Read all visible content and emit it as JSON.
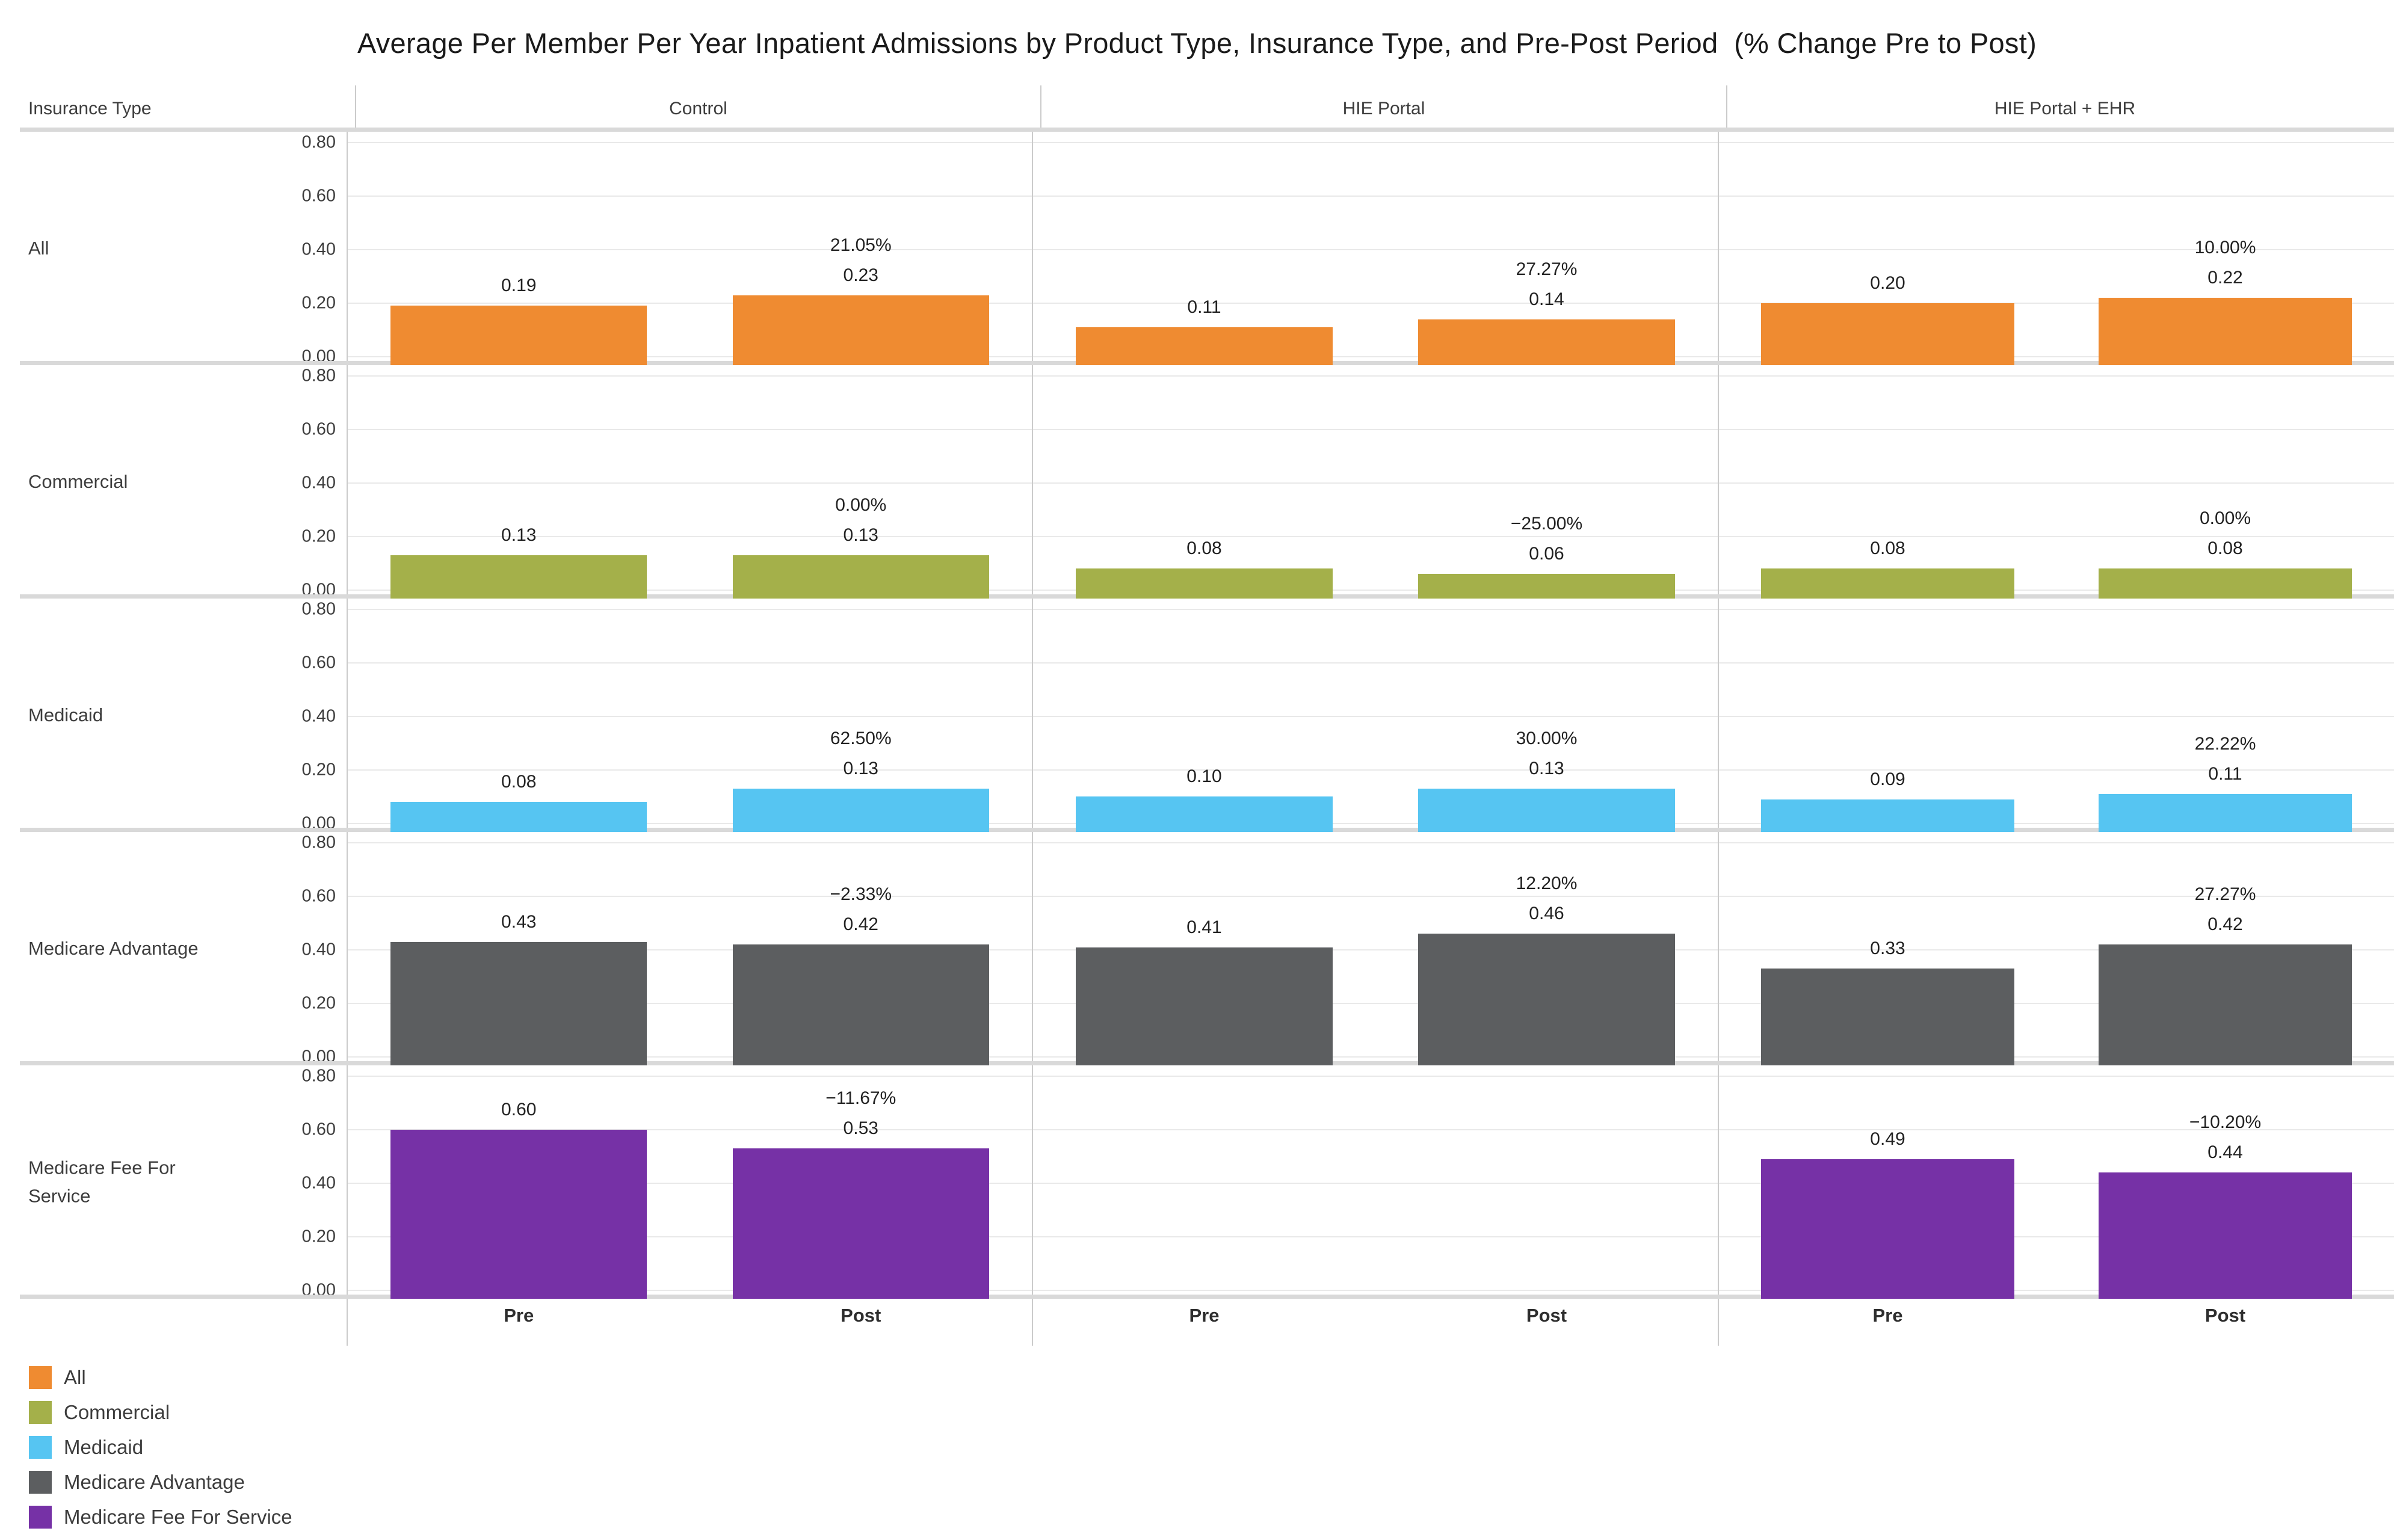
{
  "title": "Average Per Member Per Year Inpatient Admissions by Product Type, Insurance Type, and Pre-Post Period  (% Change Pre to Post)",
  "header": {
    "row_dimension_label": "Insurance Type"
  },
  "y_axis": {
    "tick_labels": [
      "0.80",
      "0.60",
      "0.40",
      "0.20",
      "0.00"
    ]
  },
  "x_axis": {
    "labels": [
      "Pre",
      "Post"
    ]
  },
  "colors": {
    "all": "#EF8B31",
    "commercial": "#A4B04A",
    "medicaid": "#56C5F2",
    "medicare_advantage": "#5C5E60",
    "medicare_fee_for_service": "#7631A6",
    "gridline": "#E9E9E9",
    "separator": "#D9D9D9",
    "divider": "#CBCBCB",
    "text": "#3d3d3d"
  },
  "chart_data": {
    "type": "bar",
    "title": "Average Per Member Per Year Inpatient Admissions by Product Type, Insurance Type, and Pre-Post Period (% Change Pre to Post)",
    "facet_columns": [
      "Control",
      "HIE Portal",
      "HIE Portal + EHR"
    ],
    "facet_rows": [
      "All",
      "Commercial",
      "Medicaid",
      "Medicare Advantage",
      "Medicare Fee For Service"
    ],
    "categories": [
      "Pre",
      "Post"
    ],
    "ylim": [
      0,
      0.87
    ],
    "y_ticks": [
      0.0,
      0.2,
      0.4,
      0.6,
      0.8
    ],
    "grid": true,
    "legend_position": "bottom-left",
    "series": [
      {
        "row": "All",
        "color_key": "all",
        "cells": [
          {
            "column": "Control",
            "pre": 0.19,
            "post": 0.23,
            "pct_change": "21.05%"
          },
          {
            "column": "HIE Portal",
            "pre": 0.11,
            "post": 0.14,
            "pct_change": "27.27%"
          },
          {
            "column": "HIE Portal + EHR",
            "pre": 0.2,
            "post": 0.22,
            "pct_change": "10.00%"
          }
        ]
      },
      {
        "row": "Commercial",
        "color_key": "commercial",
        "cells": [
          {
            "column": "Control",
            "pre": 0.13,
            "post": 0.13,
            "pct_change": "0.00%"
          },
          {
            "column": "HIE Portal",
            "pre": 0.08,
            "post": 0.06,
            "pct_change": "−25.00%"
          },
          {
            "column": "HIE Portal + EHR",
            "pre": 0.08,
            "post": 0.08,
            "pct_change": "0.00%"
          }
        ]
      },
      {
        "row": "Medicaid",
        "color_key": "medicaid",
        "cells": [
          {
            "column": "Control",
            "pre": 0.08,
            "post": 0.13,
            "pct_change": "62.50%"
          },
          {
            "column": "HIE Portal",
            "pre": 0.1,
            "post": 0.13,
            "pct_change": "30.00%"
          },
          {
            "column": "HIE Portal + EHR",
            "pre": 0.09,
            "post": 0.11,
            "pct_change": "22.22%"
          }
        ]
      },
      {
        "row": "Medicare Advantage",
        "color_key": "medicare_advantage",
        "cells": [
          {
            "column": "Control",
            "pre": 0.43,
            "post": 0.42,
            "pct_change": "−2.33%"
          },
          {
            "column": "HIE Portal",
            "pre": 0.41,
            "post": 0.46,
            "pct_change": "12.20%"
          },
          {
            "column": "HIE Portal + EHR",
            "pre": 0.33,
            "post": 0.42,
            "pct_change": "27.27%"
          }
        ]
      },
      {
        "row": "Medicare Fee For Service",
        "color_key": "medicare_fee_for_service",
        "cells": [
          {
            "column": "Control",
            "pre": 0.6,
            "post": 0.53,
            "pct_change": "−11.67%"
          },
          null,
          {
            "column": "HIE Portal + EHR",
            "pre": 0.49,
            "post": 0.44,
            "pct_change": "−10.20%"
          }
        ]
      }
    ]
  },
  "legend": {
    "items": [
      {
        "label": "All",
        "color_key": "all"
      },
      {
        "label": "Commercial",
        "color_key": "commercial"
      },
      {
        "label": "Medicaid",
        "color_key": "medicaid"
      },
      {
        "label": "Medicare Advantage",
        "color_key": "medicare_advantage"
      },
      {
        "label": "Medicare Fee For Service",
        "color_key": "medicare_fee_for_service"
      }
    ]
  }
}
